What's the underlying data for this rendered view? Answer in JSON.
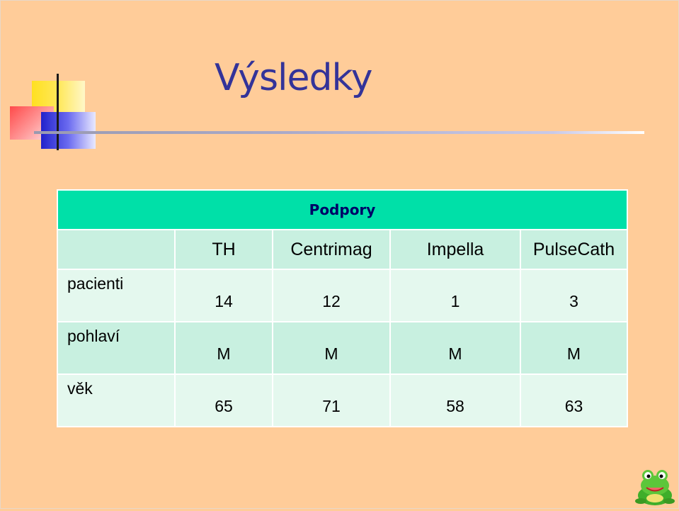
{
  "slide": {
    "title": "Výsledky"
  },
  "table": {
    "caption": "Podpory",
    "columns": [
      "",
      "TH",
      "Centrimag",
      "Impella",
      "PulseCath"
    ],
    "rows": [
      {
        "label": "pacienti",
        "values": [
          "14",
          "12",
          "1",
          "3"
        ]
      },
      {
        "label": "pohlaví",
        "values": [
          "M",
          "M",
          "M",
          "M"
        ]
      },
      {
        "label": "věk",
        "values": [
          "65",
          "71",
          "58",
          "63"
        ]
      }
    ]
  },
  "colors": {
    "background": "#FFCC99",
    "title": "#333399",
    "caption_bg": "#00E0A8",
    "row_light": "#E4F8EE",
    "row_mid": "#C8F0E0"
  },
  "icons": {
    "decoration": "colored-blocks-graphic",
    "corner": "frog-icon"
  }
}
